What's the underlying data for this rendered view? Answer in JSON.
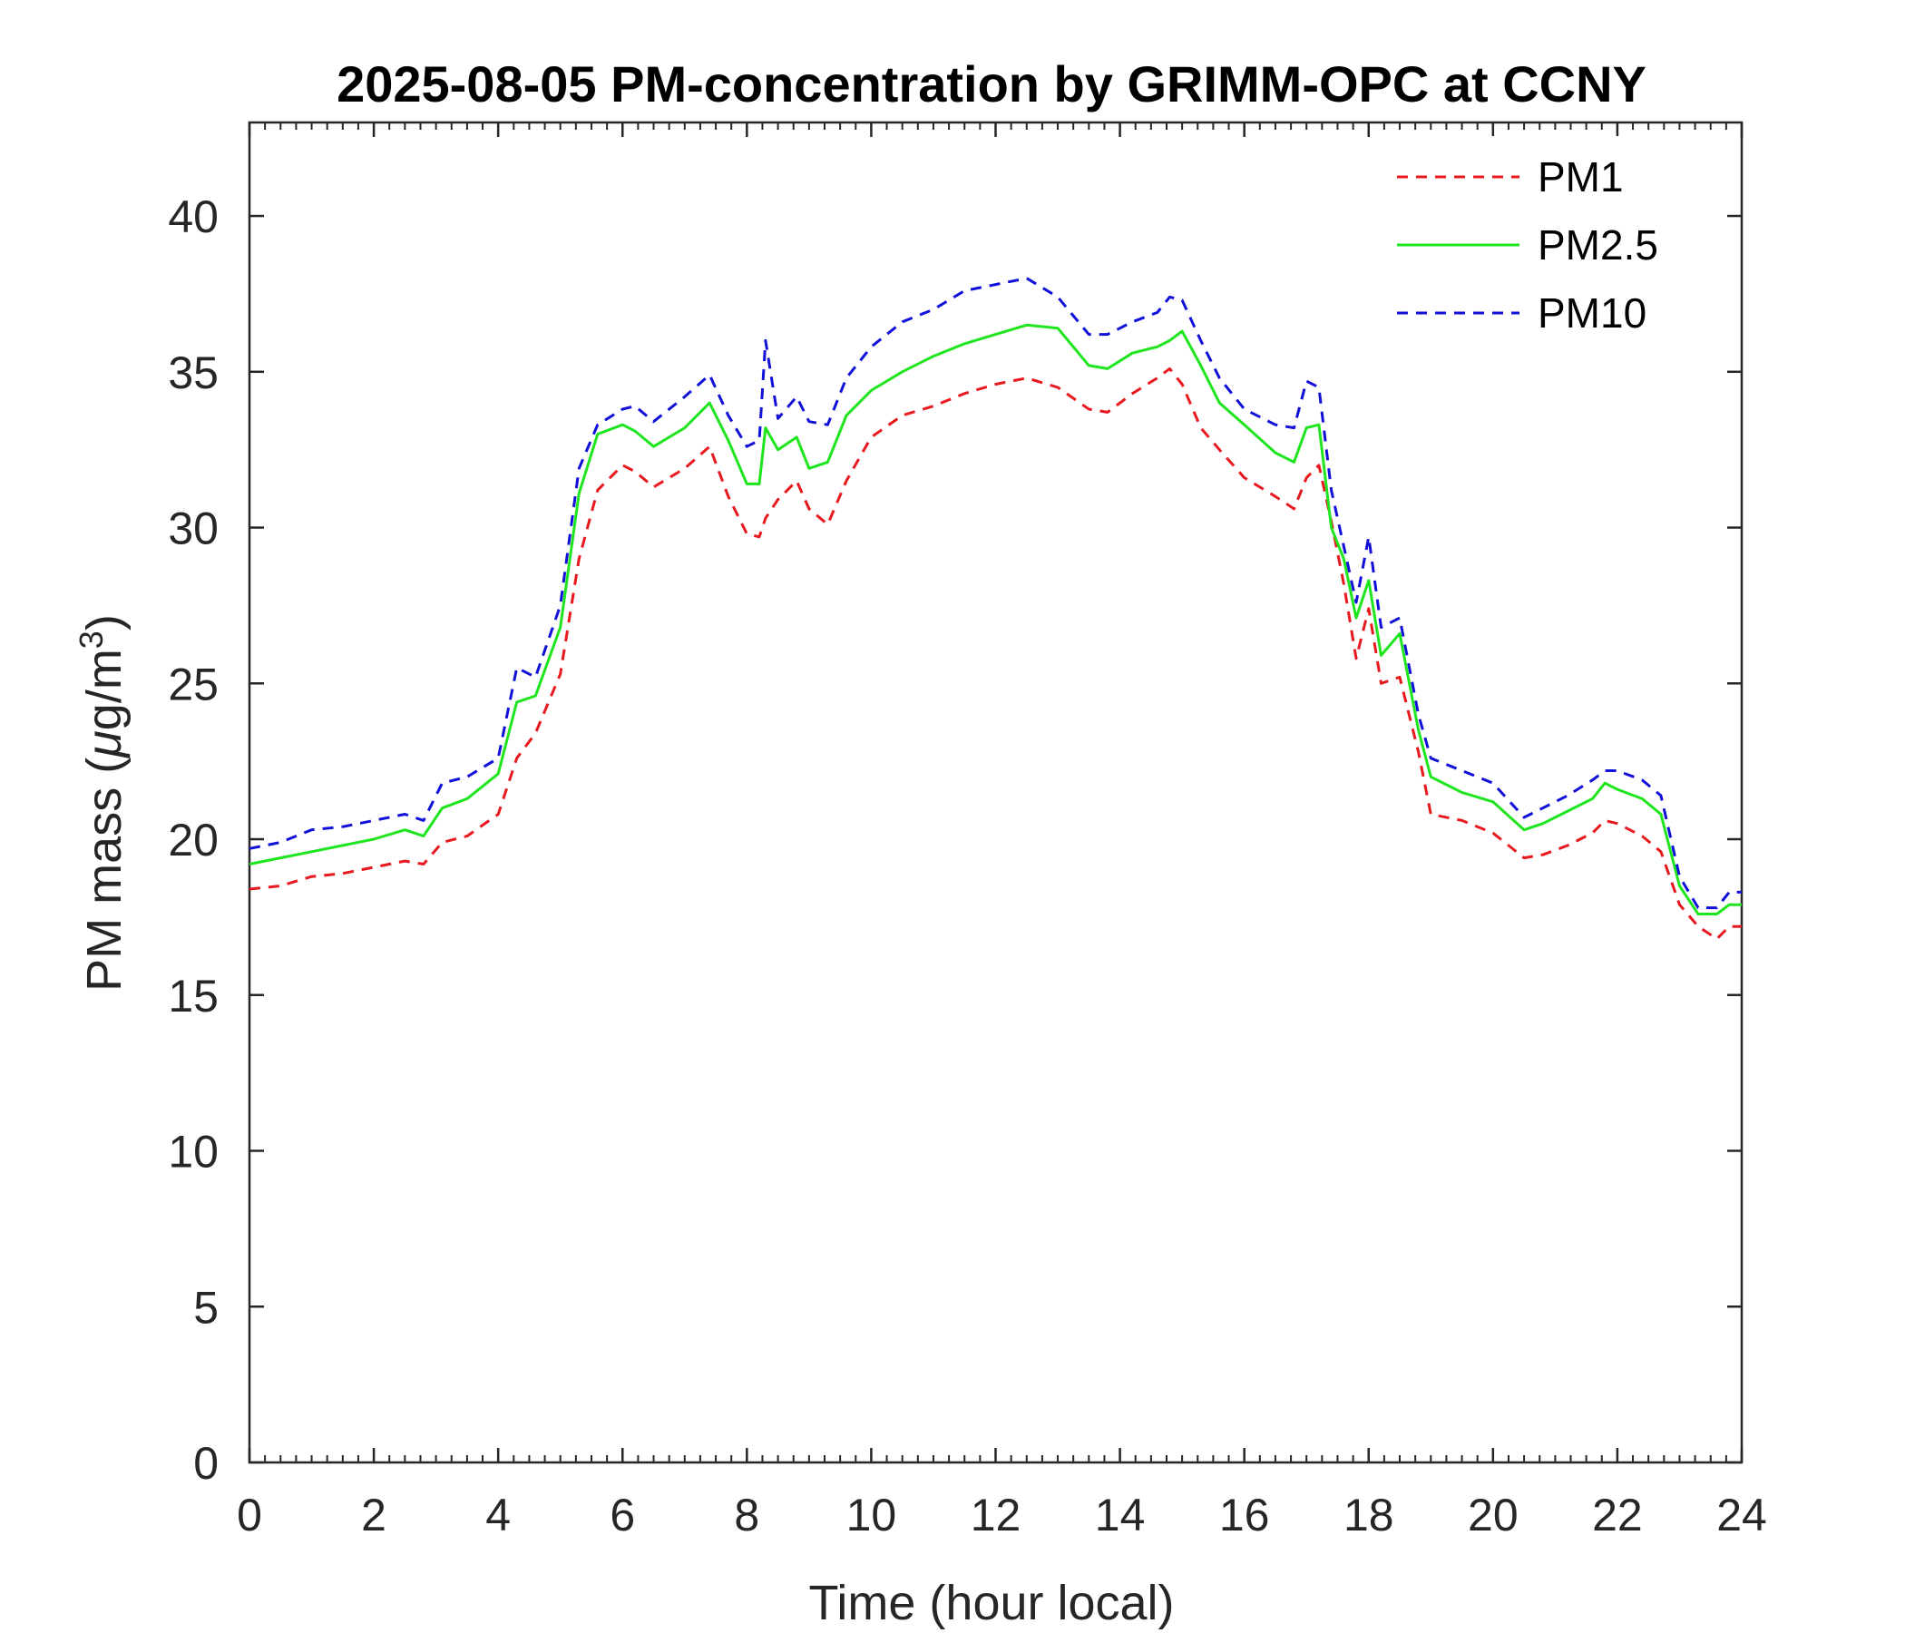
{
  "chart_data": {
    "type": "line",
    "title": "2025-08-05 PM-concentration by GRIMM-OPC at CCNY",
    "xlabel": "Time (hour local)",
    "ylabel_prefix": "PM mass (",
    "ylabel_mu": "μ",
    "ylabel_unit": "g/m",
    "ylabel_sup": "3",
    "ylabel_suffix": ")",
    "xlim": [
      0,
      24
    ],
    "ylim": [
      0,
      43
    ],
    "xticks": [
      0,
      2,
      4,
      6,
      8,
      10,
      12,
      14,
      16,
      18,
      20,
      22,
      24
    ],
    "xtick_labels": [
      "0",
      "2",
      "4",
      "6",
      "8",
      "10",
      "12",
      "14",
      "16",
      "18",
      "20",
      "22",
      "24"
    ],
    "yticks": [
      0,
      5,
      10,
      15,
      20,
      25,
      30,
      35,
      40
    ],
    "ytick_labels": [
      "0",
      "5",
      "10",
      "15",
      "20",
      "25",
      "30",
      "35",
      "40"
    ],
    "grid": false,
    "legend_position": "top-right",
    "x": [
      0,
      0.5,
      1,
      1.5,
      2,
      2.5,
      2.8,
      3.1,
      3.5,
      4.0,
      4.3,
      4.6,
      5.0,
      5.3,
      5.6,
      6.0,
      6.2,
      6.5,
      7.0,
      7.4,
      7.7,
      8.0,
      8.2,
      8.3,
      8.5,
      8.8,
      9.0,
      9.3,
      9.6,
      10.0,
      10.5,
      11.0,
      11.5,
      12.0,
      12.5,
      13.0,
      13.5,
      13.8,
      14.2,
      14.6,
      14.8,
      15.0,
      15.3,
      15.6,
      16.0,
      16.5,
      16.8,
      17.0,
      17.2,
      17.4,
      17.6,
      17.8,
      18.0,
      18.2,
      18.5,
      18.8,
      19.0,
      19.5,
      20.0,
      20.5,
      20.8,
      21.2,
      21.6,
      21.8,
      22.0,
      22.4,
      22.7,
      23.0,
      23.3,
      23.6,
      23.8,
      24.0
    ],
    "series": [
      {
        "name": "PM1",
        "color": "#e8191e",
        "dash": "dashed",
        "values": [
          18.4,
          18.5,
          18.8,
          18.9,
          19.1,
          19.3,
          19.2,
          19.9,
          20.1,
          20.8,
          22.6,
          23.4,
          25.3,
          29.0,
          31.2,
          32.0,
          31.8,
          31.3,
          31.9,
          32.6,
          31.0,
          29.8,
          29.7,
          30.3,
          30.9,
          31.5,
          30.6,
          30.1,
          31.5,
          32.9,
          33.6,
          33.9,
          34.3,
          34.6,
          34.8,
          34.5,
          33.8,
          33.7,
          34.3,
          34.8,
          35.1,
          34.6,
          33.2,
          32.5,
          31.6,
          31.0,
          30.6,
          31.6,
          32.0,
          30.2,
          28.2,
          25.8,
          27.4,
          25.0,
          25.2,
          22.8,
          20.8,
          20.6,
          20.2,
          19.4,
          19.5,
          19.8,
          20.2,
          20.6,
          20.5,
          20.1,
          19.6,
          17.9,
          17.2,
          16.8,
          17.2,
          17.2
        ]
      },
      {
        "name": "PM2.5",
        "color": "#1ee51e",
        "dash": "solid",
        "values": [
          19.2,
          19.4,
          19.6,
          19.8,
          20.0,
          20.3,
          20.1,
          21.0,
          21.3,
          22.1,
          24.4,
          24.6,
          26.8,
          31.1,
          33.0,
          33.3,
          33.1,
          32.6,
          33.2,
          34.0,
          32.8,
          31.4,
          31.4,
          33.2,
          32.5,
          32.9,
          31.9,
          32.1,
          33.6,
          34.4,
          35.0,
          35.5,
          35.9,
          36.2,
          36.5,
          36.4,
          35.2,
          35.1,
          35.6,
          35.8,
          36.0,
          36.3,
          35.2,
          34.0,
          33.3,
          32.4,
          32.1,
          33.2,
          33.3,
          30.0,
          29.0,
          27.1,
          28.3,
          25.9,
          26.6,
          23.5,
          22.0,
          21.5,
          21.2,
          20.3,
          20.5,
          20.9,
          21.3,
          21.8,
          21.6,
          21.3,
          20.8,
          18.5,
          17.6,
          17.6,
          17.9,
          17.9
        ]
      },
      {
        "name": "PM10",
        "color": "#1010d8",
        "dash": "dashed",
        "values": [
          19.7,
          19.9,
          20.3,
          20.4,
          20.6,
          20.8,
          20.6,
          21.8,
          22.0,
          22.6,
          25.5,
          25.2,
          27.5,
          31.9,
          33.3,
          33.8,
          33.9,
          33.4,
          34.2,
          34.9,
          33.6,
          32.6,
          32.8,
          36.0,
          33.5,
          34.2,
          33.4,
          33.3,
          34.8,
          35.8,
          36.6,
          37.0,
          37.6,
          37.8,
          38.0,
          37.4,
          36.2,
          36.2,
          36.6,
          36.9,
          37.4,
          37.3,
          36.0,
          34.8,
          33.8,
          33.3,
          33.2,
          34.7,
          34.5,
          31.2,
          29.4,
          27.6,
          29.7,
          26.8,
          27.1,
          24.0,
          22.6,
          22.2,
          21.8,
          20.7,
          21.0,
          21.4,
          21.9,
          22.2,
          22.2,
          21.9,
          21.4,
          18.8,
          17.8,
          17.8,
          18.3,
          18.3
        ]
      }
    ]
  }
}
